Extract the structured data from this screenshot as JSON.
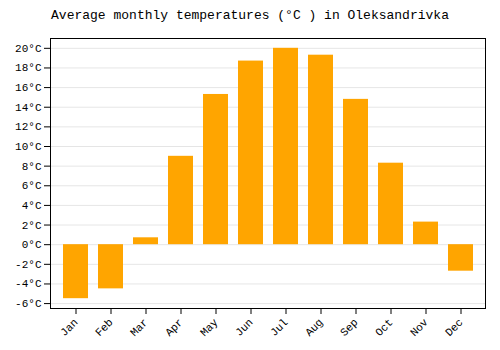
{
  "chart_data": {
    "type": "bar",
    "title": "Average monthly temperatures (°C ) in Oleksandrivka",
    "categories": [
      "Jan",
      "Feb",
      "Mar",
      "Apr",
      "May",
      "Jun",
      "Jul",
      "Aug",
      "Sep",
      "Oct",
      "Nov",
      "Dec"
    ],
    "values": [
      -5.5,
      -4.5,
      0.7,
      9.0,
      15.3,
      18.7,
      20.0,
      19.3,
      14.8,
      8.3,
      2.3,
      -2.7
    ],
    "color": "#FFA500",
    "ylim": [
      -6.5,
      21
    ],
    "yticks": [
      {
        "value": -6,
        "label": "-6°C"
      },
      {
        "value": -4,
        "label": "-4°C"
      },
      {
        "value": -2,
        "label": "-2°C"
      },
      {
        "value": 0,
        "label": "0°C"
      },
      {
        "value": 2,
        "label": "2°C"
      },
      {
        "value": 4,
        "label": "4°C"
      },
      {
        "value": 6,
        "label": "6°C"
      },
      {
        "value": 8,
        "label": "8°C"
      },
      {
        "value": 10,
        "label": "10°C"
      },
      {
        "value": 12,
        "label": "12°C"
      },
      {
        "value": 14,
        "label": "14°C"
      },
      {
        "value": 16,
        "label": "16°C"
      },
      {
        "value": 18,
        "label": "18°C"
      },
      {
        "value": 20,
        "label": "20°C"
      }
    ],
    "grid": true
  }
}
